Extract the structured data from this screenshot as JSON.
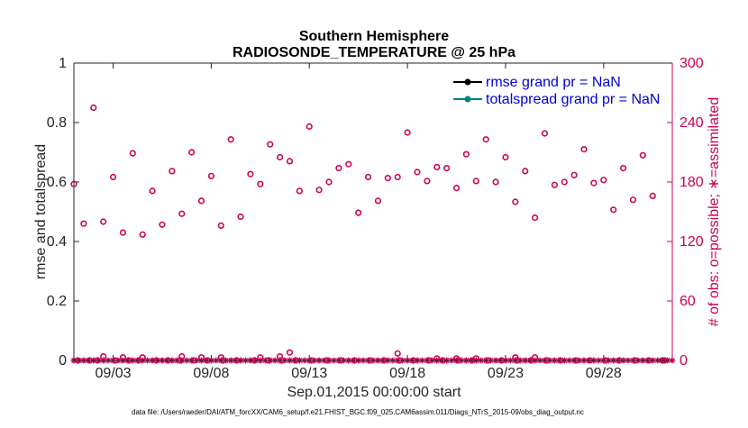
{
  "chart_data": {
    "type": "scatter",
    "title": [
      "Southern Hemisphere",
      "RADIOSONDE_TEMPERATURE @ 25 hPa"
    ],
    "xlabel": "Sep.01,2015 00:00:00 start",
    "ylabel_left": "rmse and totalspread",
    "ylabel_right": "# of obs: o=possible; ∗=assimilated",
    "xlim": [
      1.0,
      31.5
    ],
    "ylim_left": [
      0,
      1
    ],
    "ylim_right": [
      0,
      300
    ],
    "x_ticks": [
      {
        "value": 3,
        "label": "09/03"
      },
      {
        "value": 8,
        "label": "09/08"
      },
      {
        "value": 13,
        "label": "09/13"
      },
      {
        "value": 18,
        "label": "09/18"
      },
      {
        "value": 23,
        "label": "09/23"
      },
      {
        "value": 28,
        "label": "09/28"
      }
    ],
    "y_ticks_left": [
      {
        "value": 0,
        "label": "0"
      },
      {
        "value": 0.2,
        "label": "0.2"
      },
      {
        "value": 0.4,
        "label": "0.4"
      },
      {
        "value": 0.6,
        "label": "0.6"
      },
      {
        "value": 0.8,
        "label": "0.8"
      },
      {
        "value": 1,
        "label": "1"
      }
    ],
    "y_ticks_right": [
      {
        "value": 0,
        "label": "0"
      },
      {
        "value": 60,
        "label": "60"
      },
      {
        "value": 120,
        "label": "120"
      },
      {
        "value": 180,
        "label": "180"
      },
      {
        "value": 240,
        "label": "240"
      },
      {
        "value": 300,
        "label": "300"
      }
    ],
    "legend": [
      {
        "label": "rmse grand pr = NaN",
        "color": "#000000"
      },
      {
        "label": "totalspread grand pr = NaN",
        "color": "#008080"
      }
    ],
    "legend_position": "top-right",
    "series": [
      {
        "name": "possible obs count",
        "marker": "circle",
        "color": "#cc0055",
        "x": [
          1.0,
          1.5,
          2.0,
          2.5,
          3.0,
          3.5,
          4.0,
          4.5,
          5.0,
          5.5,
          6.0,
          6.5,
          7.0,
          7.5,
          8.0,
          8.5,
          9.0,
          9.5,
          10.0,
          10.5,
          11.0,
          11.5,
          12.0,
          12.5,
          13.0,
          13.5,
          14.0,
          14.5,
          15.0,
          15.5,
          16.0,
          16.5,
          17.0,
          17.5,
          18.0,
          18.5,
          19.0,
          19.5,
          20.0,
          20.5,
          21.0,
          21.5,
          22.0,
          22.5,
          23.0,
          23.5,
          24.0,
          24.5,
          25.0,
          25.5,
          26.0,
          26.5,
          27.0,
          27.5,
          28.0,
          28.5,
          29.0,
          29.5,
          30.0,
          30.5,
          31.0
        ],
        "y": [
          178,
          138,
          255,
          140,
          185,
          129,
          209,
          127,
          171,
          137,
          191,
          148,
          210,
          161,
          186,
          136,
          223,
          145,
          188,
          178,
          218,
          205,
          201,
          171,
          236,
          172,
          180,
          194,
          198,
          149,
          185,
          161,
          184,
          185,
          230,
          190,
          181,
          195,
          194,
          174,
          208,
          181,
          223,
          180,
          205,
          160,
          191,
          144,
          229,
          177,
          180,
          187,
          213,
          179,
          182,
          152,
          194,
          162,
          207,
          166,
          0
        ],
        "x_extra": [
          1.2,
          1.8,
          2.2,
          3.1,
          3.8,
          4.3,
          5.2,
          5.8,
          6.4,
          7.1,
          7.8,
          8.6,
          9.3,
          10.2,
          10.9,
          11.6,
          12.3,
          13.1,
          13.9,
          14.6,
          15.3,
          16.1,
          16.8,
          17.6,
          18.3,
          19.1,
          19.8,
          20.6,
          21.3,
          22.1,
          22.8,
          23.6,
          24.3,
          25.1,
          25.8,
          26.6,
          27.3,
          28.1,
          28.8,
          29.6,
          30.3,
          31.1
        ],
        "y_extra": [
          0,
          0,
          0,
          0,
          0,
          0,
          0,
          0,
          0,
          0,
          0,
          0,
          0,
          0,
          0,
          0,
          0,
          0,
          0,
          0,
          0,
          0,
          0,
          0,
          0,
          0,
          0,
          0,
          0,
          0,
          0,
          0,
          0,
          0,
          0,
          0,
          0,
          0,
          0,
          0,
          0,
          0
        ],
        "x_raised": [
          2.5,
          3.5,
          4.5,
          6.5,
          7.5,
          8.5,
          10.5,
          11.5,
          12.0,
          17.5,
          19.5,
          20.5,
          21.5,
          23.5,
          24.5
        ],
        "y_raised": [
          4,
          3,
          3,
          4,
          3,
          3,
          3,
          4,
          8,
          7,
          2,
          2,
          2,
          3,
          3
        ]
      },
      {
        "name": "assimilated obs count",
        "marker": "asterisk",
        "color": "#cc0055",
        "x": [
          1.0,
          1.5,
          2.0,
          2.5,
          3.0,
          3.5,
          4.0,
          4.5,
          5.0,
          5.5,
          6.0,
          6.5,
          7.0,
          7.5,
          8.0,
          8.5,
          9.0,
          9.5,
          10.0,
          10.5,
          11.0,
          11.5,
          12.0,
          12.5,
          13.0,
          13.5,
          14.0,
          14.5,
          15.0,
          15.5,
          16.0,
          16.5,
          17.0,
          17.5,
          18.0,
          18.5,
          19.0,
          19.5,
          20.0,
          20.5,
          21.0,
          21.5,
          22.0,
          22.5,
          23.0,
          23.5,
          24.0,
          24.5,
          25.0,
          25.5,
          26.0,
          26.5,
          27.0,
          27.5,
          28.0,
          28.5,
          29.0,
          29.5,
          30.0,
          30.5,
          31.0
        ],
        "y": [
          0,
          0,
          0,
          0,
          0,
          0,
          0,
          0,
          0,
          0,
          0,
          0,
          0,
          0,
          0,
          0,
          0,
          0,
          0,
          0,
          0,
          0,
          0,
          0,
          0,
          0,
          0,
          0,
          0,
          0,
          0,
          0,
          0,
          0,
          0,
          0,
          0,
          0,
          0,
          0,
          0,
          0,
          0,
          0,
          0,
          0,
          0,
          0,
          0,
          0,
          0,
          0,
          0,
          0,
          0,
          0,
          0,
          0,
          0,
          0,
          0
        ]
      }
    ]
  },
  "footnote": "data file: /Users/raeder/DAI/ATM_forcXX/CAM6_setup/f.e21.FHIST_BGC.f09_025.CAM6assim.011/Diags_NTrS_2015-09/obs_diag_output.nc"
}
